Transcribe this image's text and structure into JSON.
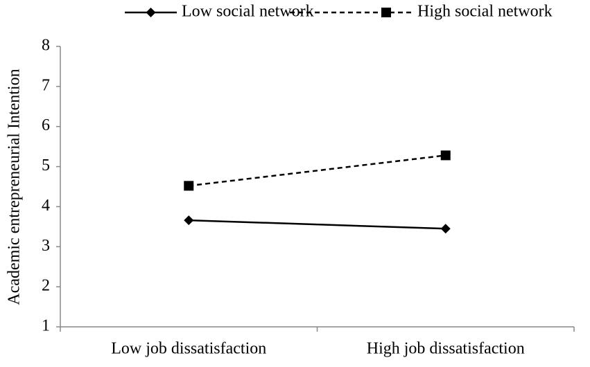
{
  "chart_data": {
    "type": "line",
    "y_label": "Academic entrepreneurial Intention",
    "categories": [
      "Low job dissatisfaction",
      "High job dissatisfaction"
    ],
    "series": [
      {
        "name": "Low social network",
        "color": "#000000",
        "marker": "diamond",
        "dash": "solid",
        "values": [
          3.66,
          3.45
        ]
      },
      {
        "name": "High social network",
        "color": "#000000",
        "marker": "square",
        "dash": "dashed",
        "values": [
          4.52,
          5.28
        ]
      }
    ],
    "ylim": [
      1,
      8
    ],
    "yticks": [
      1,
      2,
      3,
      4,
      5,
      6,
      7,
      8
    ],
    "grid": false,
    "legend": "top"
  }
}
